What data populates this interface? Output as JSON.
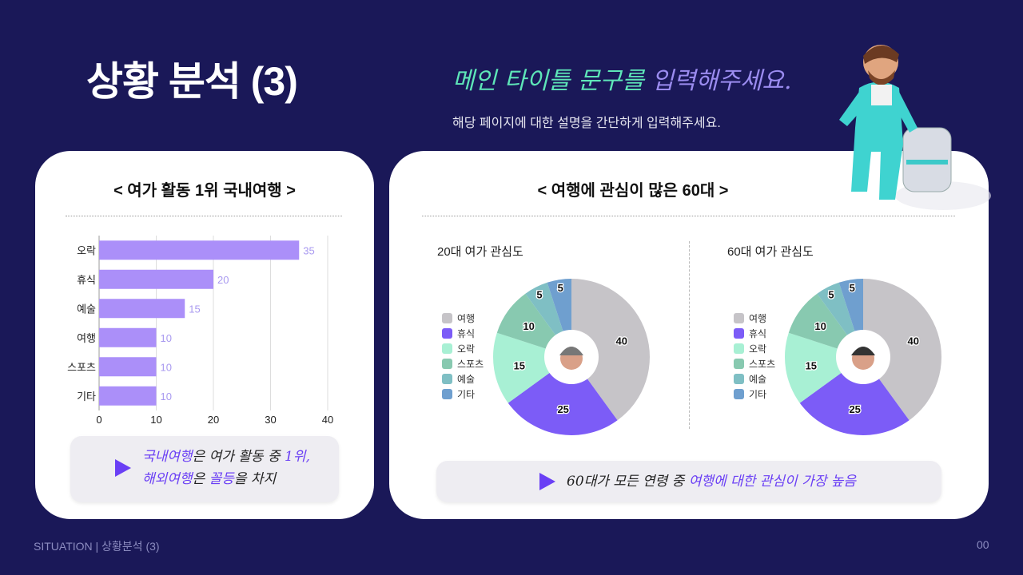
{
  "header": {
    "title": "상황 분석 (3)",
    "headline_part1": "메인 타이틀 문구를 ",
    "headline_part2": "입력해주세요.",
    "subtitle": "해당 페이지에 대한 설명을 간단하게 입력해주세요."
  },
  "left_card": {
    "title": "< 여가 활동 1위 국내여행 >",
    "callout": {
      "l1a": "국내여행",
      "l1b": "은 여가 활동 중 ",
      "l1c": "1위,",
      "l2a": "해외여행",
      "l2b": "은 ",
      "l2c": "꼴등",
      "l2d": "을 차지"
    }
  },
  "right_card": {
    "title": "< 여행에 관심이 많은 60대 >",
    "callout": {
      "a": "60대가 모든 연령 중 ",
      "b": "여행에 대한 관심이 가장 높음"
    }
  },
  "footer": {
    "left": "SITUATION | 상황분석 (3)",
    "right": "00"
  },
  "colors": {
    "bar": "#ab8ff9",
    "accent": "#6a3ff5",
    "background": "#1a1858"
  },
  "chart_data": [
    {
      "type": "bar",
      "orientation": "horizontal",
      "categories": [
        "오락",
        "휴식",
        "예술",
        "여행",
        "스포츠",
        "기타"
      ],
      "values": [
        35,
        20,
        15,
        10,
        10,
        10
      ],
      "xlim": [
        0,
        40
      ],
      "xticks": [
        0,
        10,
        20,
        30,
        40
      ],
      "grid": true
    },
    {
      "type": "pie",
      "donut": true,
      "title": "20대 여가 관심도",
      "categories": [
        "여행",
        "휴식",
        "오락",
        "스포츠",
        "예술",
        "기타"
      ],
      "values": [
        40,
        25,
        15,
        10,
        5,
        5
      ],
      "colors": [
        "#c6c4c8",
        "#7c5cf7",
        "#a8f0d4",
        "#88c9b0",
        "#7fbfc4",
        "#6f9fcf"
      ],
      "legend": "left",
      "center_icon": "young-man-avatar"
    },
    {
      "type": "pie",
      "donut": true,
      "title": "60대 여가 관심도",
      "categories": [
        "여행",
        "휴식",
        "오락",
        "스포츠",
        "예술",
        "기타"
      ],
      "values": [
        40,
        25,
        15,
        10,
        5,
        5
      ],
      "colors": [
        "#c6c4c8",
        "#7c5cf7",
        "#a8f0d4",
        "#88c9b0",
        "#7fbfc4",
        "#6f9fcf"
      ],
      "legend": "left",
      "center_icon": "older-man-avatar"
    }
  ]
}
